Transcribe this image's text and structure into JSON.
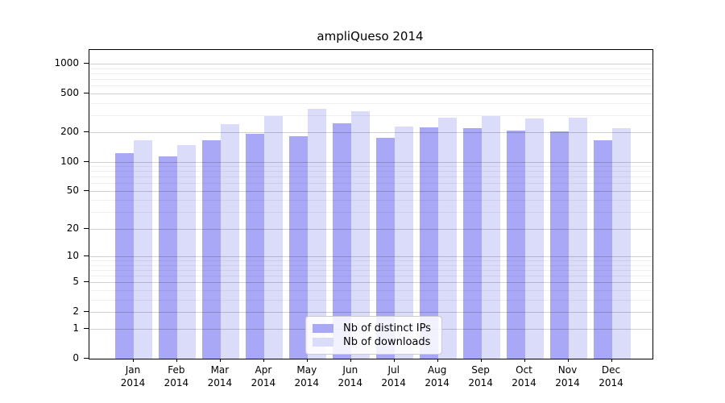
{
  "title": "ampliQueso 2014",
  "colors": {
    "ips_bar": "#a8a8f7",
    "downloads_bar": "#dbdbfa",
    "axis": "#000000"
  },
  "legend": {
    "items": [
      {
        "label": "Nb of distinct IPs",
        "series": "ips"
      },
      {
        "label": "Nb of downloads",
        "series": "downloads"
      }
    ]
  },
  "y_axis": {
    "scale": "log1p",
    "ticks": [
      1000,
      500,
      200,
      100,
      50,
      20,
      10,
      5,
      2,
      1,
      0
    ],
    "minor_gridlines": [
      3,
      4,
      6,
      7,
      8,
      9,
      30,
      40,
      60,
      70,
      80,
      90,
      300,
      400,
      600,
      700,
      800,
      900
    ]
  },
  "x_axis": {
    "tick_labels": [
      {
        "month": "Jan",
        "year": "2014"
      },
      {
        "month": "Feb",
        "year": "2014"
      },
      {
        "month": "Mar",
        "year": "2014"
      },
      {
        "month": "Apr",
        "year": "2014"
      },
      {
        "month": "May",
        "year": "2014"
      },
      {
        "month": "Jun",
        "year": "2014"
      },
      {
        "month": "Jul",
        "year": "2014"
      },
      {
        "month": "Aug",
        "year": "2014"
      },
      {
        "month": "Sep",
        "year": "2014"
      },
      {
        "month": "Oct",
        "year": "2014"
      },
      {
        "month": "Nov",
        "year": "2014"
      },
      {
        "month": "Dec",
        "year": "2014"
      }
    ]
  },
  "chart_data": {
    "type": "bar",
    "title": "ampliQueso 2014",
    "categories": [
      "Jan 2014",
      "Feb 2014",
      "Mar 2014",
      "Apr 2014",
      "May 2014",
      "Jun 2014",
      "Jul 2014",
      "Aug 2014",
      "Sep 2014",
      "Oct 2014",
      "Nov 2014",
      "Dec 2014"
    ],
    "series": [
      {
        "name": "Nb of distinct IPs",
        "values": [
          123,
          113,
          165,
          193,
          184,
          246,
          177,
          226,
          219,
          208,
          206,
          167
        ]
      },
      {
        "name": "Nb of downloads",
        "values": [
          165,
          147,
          243,
          292,
          350,
          330,
          230,
          281,
          295,
          278,
          283,
          219
        ]
      }
    ],
    "xlabel": "",
    "ylabel": "",
    "y_scale": "log1p",
    "y_ticks": [
      0,
      1,
      2,
      5,
      10,
      20,
      50,
      100,
      200,
      500,
      1000
    ],
    "ylim": [
      0,
      1200
    ],
    "grid": true,
    "legend_position": "lower-center"
  }
}
